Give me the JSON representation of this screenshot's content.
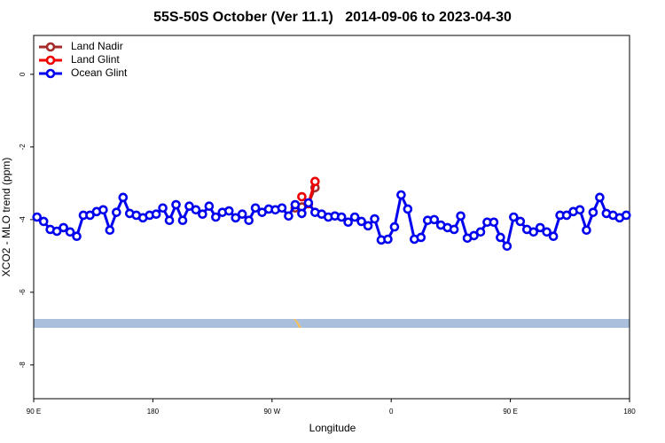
{
  "chart_data": {
    "type": "line",
    "title": "55S-50S October (Ver 11.1)   2014-09-06 to 2023-04-30",
    "x_label": "Longitude",
    "y_label": "XCO2 - MLO trend (ppm)",
    "xlim": [
      90,
      540
    ],
    "ylim": [
      -8.93,
      1.07
    ],
    "xticks": [
      {
        "value": 90,
        "label": "90 E"
      },
      180,
      {
        "value": 270,
        "label": "90 W"
      },
      {
        "value": 360,
        "label": "0"
      },
      {
        "value": 450,
        "label": "90 E"
      },
      {
        "value": 540,
        "label": "180"
      }
    ],
    "yticks": [
      0,
      -2,
      -4,
      -6,
      -8
    ],
    "legend": "top-left",
    "series": [
      {
        "name": "Land Nadir",
        "color": "#a52a2a",
        "x": [
          287.5,
          292.5,
          297.5,
          302.5
        ],
        "values": [
          -3.68,
          -3.65,
          -3.56,
          -3.12
        ]
      },
      {
        "name": "Land Glint",
        "color": "#ee0000",
        "x": [
          287.5,
          292.5,
          297.5,
          302.5
        ],
        "values": [
          null,
          -3.37,
          -3.56,
          -2.95
        ]
      },
      {
        "name": "Ocean Glint",
        "color": "#0000ee",
        "x": [
          92.5,
          97.5,
          102.5,
          107.5,
          112.5,
          117.5,
          122.5,
          127.5,
          132.5,
          137.5,
          142.5,
          147.5,
          152.5,
          157.5,
          162.5,
          167.5,
          172.5,
          177.5,
          182.5,
          187.5,
          192.5,
          197.5,
          202.5,
          207.5,
          212.5,
          217.5,
          222.5,
          227.5,
          232.5,
          237.5,
          242.5,
          247.5,
          252.5,
          257.5,
          262.5,
          267.5,
          272.5,
          277.5,
          282.5,
          287.5,
          292.5,
          297.5,
          302.5,
          307.5,
          312.5,
          317.5,
          322.5,
          327.5,
          332.5,
          337.5,
          342.5,
          347.5,
          352.5,
          357.5,
          362.5,
          367.5,
          372.5,
          377.5,
          382.5,
          387.5,
          392.5,
          397.5,
          402.5,
          407.5,
          412.5,
          417.5,
          422.5,
          427.5,
          432.5,
          437.5,
          442.5,
          447.5,
          452.5,
          457.5,
          462.5,
          467.5,
          472.5,
          477.5,
          482.5,
          487.5,
          492.5,
          497.5,
          502.5,
          507.5,
          512.5,
          517.5,
          522.5,
          527.5,
          532.5,
          537.5
        ],
        "values": [
          -3.93,
          -4.05,
          -4.27,
          -4.32,
          -4.22,
          -4.34,
          -4.46,
          -3.88,
          -3.88,
          -3.78,
          -3.73,
          -4.29,
          -3.8,
          -3.39,
          -3.83,
          -3.88,
          -3.95,
          -3.88,
          -3.85,
          -3.68,
          -4.02,
          -3.59,
          -4.02,
          -3.63,
          -3.73,
          -3.85,
          -3.63,
          -3.93,
          -3.8,
          -3.76,
          -3.95,
          -3.85,
          -4.02,
          -3.68,
          -3.8,
          -3.71,
          -3.73,
          -3.68,
          -3.9,
          -3.59,
          -3.83,
          -3.54,
          -3.8,
          -3.85,
          -3.93,
          -3.9,
          -3.93,
          -4.07,
          -3.93,
          -4.05,
          -4.17,
          -3.98,
          -4.56,
          -4.54,
          -4.2,
          -3.32,
          -3.71,
          -4.54,
          -4.49,
          -4.02,
          -4.0,
          -4.15,
          -4.22,
          -4.27,
          -3.9,
          -4.51,
          -4.44,
          -4.34,
          -4.07,
          -4.07,
          -4.49,
          -4.73,
          -3.93,
          -4.05,
          -4.27,
          -4.34,
          -4.22,
          -4.34,
          -4.46,
          -3.88,
          -3.88,
          -3.78,
          -3.73,
          -4.29,
          -3.8,
          -3.39,
          -3.83,
          -3.88,
          -3.95,
          -3.88
        ]
      }
    ]
  }
}
